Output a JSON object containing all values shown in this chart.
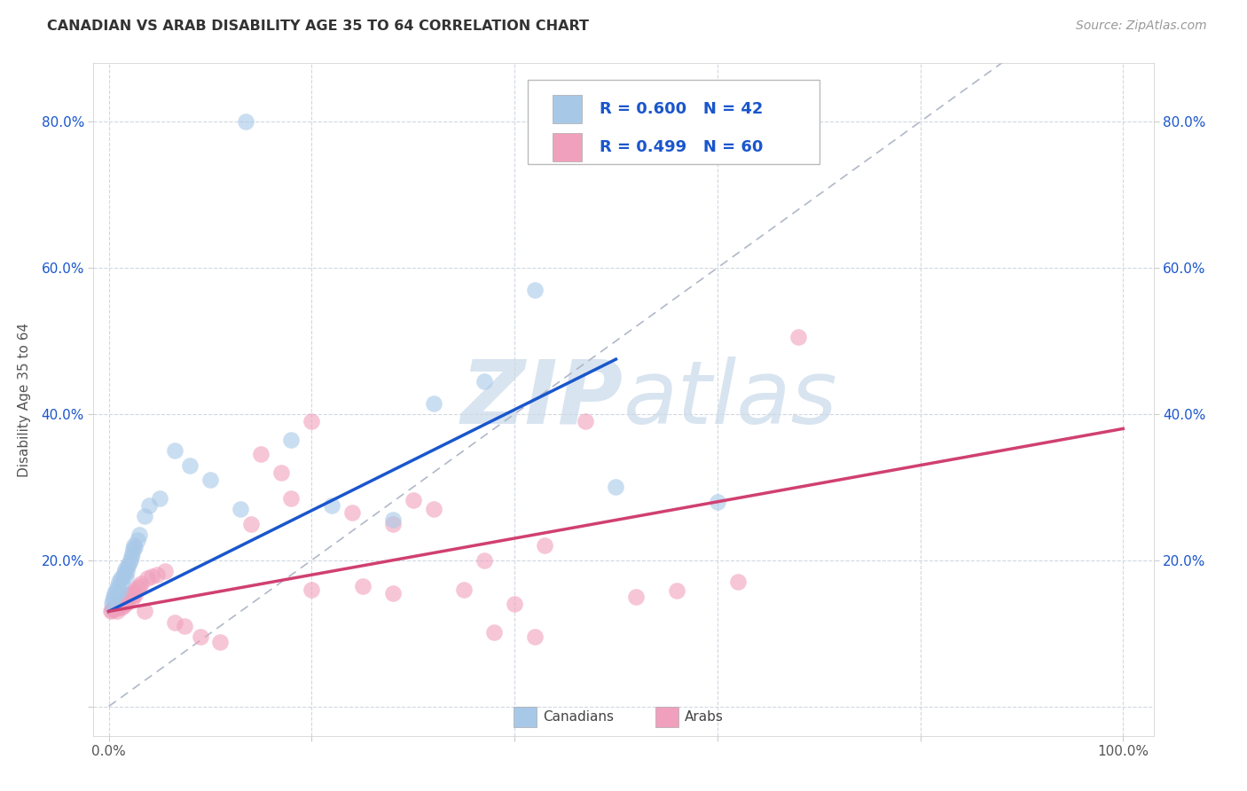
{
  "title": "CANADIAN VS ARAB DISABILITY AGE 35 TO 64 CORRELATION CHART",
  "source": "Source: ZipAtlas.com",
  "ylabel": "Disability Age 35 to 64",
  "canadian_R": 0.6,
  "canadian_N": 42,
  "arab_R": 0.499,
  "arab_N": 60,
  "canadian_color": "#a8c8e8",
  "arab_color": "#f0a0bc",
  "canadian_line_color": "#1a56cc",
  "arab_line_color": "#d04070",
  "diagonal_color": "#b0b8c8",
  "background_color": "#ffffff",
  "grid_color": "#d0d8e0",
  "tick_label_color": "#1a56cc",
  "title_color": "#333333",
  "source_color": "#999999",
  "watermark_color": "#d8e4f0",
  "canadian_x": [
    0.003,
    0.004,
    0.005,
    0.006,
    0.007,
    0.008,
    0.009,
    0.01,
    0.011,
    0.012,
    0.013,
    0.014,
    0.015,
    0.016,
    0.017,
    0.018,
    0.019,
    0.02,
    0.021,
    0.022,
    0.023,
    0.024,
    0.025,
    0.026,
    0.028,
    0.03,
    0.035,
    0.04,
    0.05,
    0.065,
    0.08,
    0.1,
    0.13,
    0.18,
    0.22,
    0.28,
    0.32,
    0.37,
    0.42,
    0.5,
    0.6,
    0.135
  ],
  "canadian_y": [
    0.14,
    0.145,
    0.15,
    0.155,
    0.16,
    0.155,
    0.165,
    0.17,
    0.158,
    0.175,
    0.168,
    0.178,
    0.183,
    0.188,
    0.178,
    0.185,
    0.192,
    0.195,
    0.2,
    0.205,
    0.21,
    0.215,
    0.22,
    0.218,
    0.228,
    0.235,
    0.26,
    0.275,
    0.285,
    0.35,
    0.33,
    0.31,
    0.27,
    0.365,
    0.275,
    0.255,
    0.415,
    0.445,
    0.57,
    0.3,
    0.28,
    0.8
  ],
  "arab_x": [
    0.002,
    0.003,
    0.004,
    0.005,
    0.006,
    0.007,
    0.008,
    0.009,
    0.01,
    0.011,
    0.012,
    0.013,
    0.014,
    0.015,
    0.016,
    0.017,
    0.018,
    0.019,
    0.02,
    0.021,
    0.022,
    0.023,
    0.024,
    0.025,
    0.026,
    0.028,
    0.03,
    0.032,
    0.035,
    0.038,
    0.042,
    0.048,
    0.055,
    0.065,
    0.075,
    0.09,
    0.11,
    0.14,
    0.17,
    0.2,
    0.24,
    0.28,
    0.32,
    0.37,
    0.42,
    0.47,
    0.52,
    0.56,
    0.62,
    0.68,
    0.15,
    0.18,
    0.2,
    0.38,
    0.4,
    0.43,
    0.28,
    0.25,
    0.3,
    0.35
  ],
  "arab_y": [
    0.13,
    0.132,
    0.134,
    0.136,
    0.133,
    0.138,
    0.13,
    0.135,
    0.14,
    0.138,
    0.142,
    0.135,
    0.138,
    0.143,
    0.14,
    0.145,
    0.142,
    0.148,
    0.15,
    0.152,
    0.155,
    0.148,
    0.152,
    0.158,
    0.153,
    0.162,
    0.165,
    0.168,
    0.13,
    0.175,
    0.178,
    0.18,
    0.185,
    0.115,
    0.11,
    0.095,
    0.088,
    0.25,
    0.32,
    0.16,
    0.265,
    0.155,
    0.27,
    0.2,
    0.095,
    0.39,
    0.15,
    0.158,
    0.17,
    0.505,
    0.345,
    0.285,
    0.39,
    0.102,
    0.14,
    0.22,
    0.25,
    0.165,
    0.282,
    0.16
  ],
  "can_line_x0": 0.0,
  "can_line_y0": 0.13,
  "can_line_x1": 0.5,
  "can_line_y1": 0.475,
  "arab_line_x0": 0.0,
  "arab_line_y0": 0.13,
  "arab_line_x1": 1.0,
  "arab_line_y1": 0.38,
  "xlim": [
    -0.015,
    1.03
  ],
  "ylim": [
    -0.04,
    0.88
  ],
  "xticks": [
    0.0,
    0.2,
    0.4,
    0.6,
    0.8,
    1.0
  ],
  "yticks": [
    0.0,
    0.2,
    0.4,
    0.6,
    0.8
  ],
  "x_tick_labels": [
    "0.0%",
    "",
    "",
    "",
    "",
    "100.0%"
  ],
  "y_tick_labels_left": [
    "",
    "20.0%",
    "40.0%",
    "60.0%",
    "80.0%"
  ],
  "y_tick_labels_right": [
    "20.0%",
    "40.0%",
    "60.0%",
    "80.0%"
  ]
}
